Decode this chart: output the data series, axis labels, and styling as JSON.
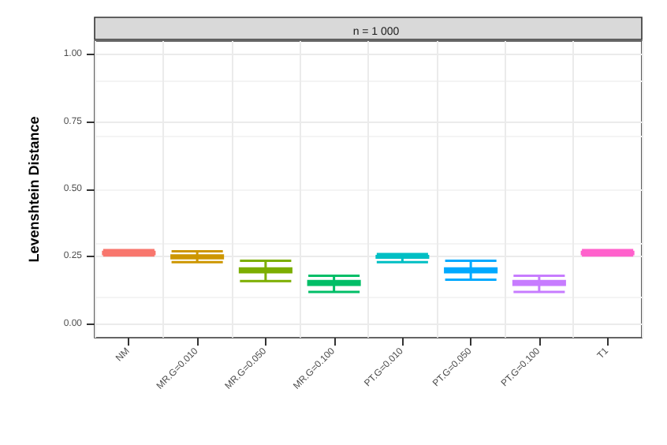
{
  "chart_data": {
    "type": "box",
    "title": "n = 1 000",
    "ylabel": "Levenshtein Distance",
    "categories": [
      "NM",
      "MR.G=0.010",
      "MR.G=0.050",
      "MR.G=0.100",
      "PT.G=0.010",
      "PT.G=0.050",
      "PT.G=0.100",
      "T1"
    ],
    "colors": [
      "#F8766D",
      "#CD9600",
      "#7CAE00",
      "#00BE67",
      "#00BFC4",
      "#00A9FF",
      "#C77CFF",
      "#FF61CC"
    ],
    "boxes": [
      {
        "low": 0.255,
        "q1": 0.26,
        "median": 0.264,
        "q3": 0.268,
        "high": 0.275
      },
      {
        "low": 0.23,
        "q1": 0.245,
        "median": 0.25,
        "q3": 0.255,
        "high": 0.27
      },
      {
        "low": 0.16,
        "q1": 0.193,
        "median": 0.2,
        "q3": 0.207,
        "high": 0.235
      },
      {
        "low": 0.12,
        "q1": 0.146,
        "median": 0.153,
        "q3": 0.16,
        "high": 0.18
      },
      {
        "low": 0.23,
        "q1": 0.247,
        "median": 0.25,
        "q3": 0.253,
        "high": 0.26
      },
      {
        "low": 0.165,
        "q1": 0.193,
        "median": 0.2,
        "q3": 0.207,
        "high": 0.235
      },
      {
        "low": 0.12,
        "q1": 0.146,
        "median": 0.153,
        "q3": 0.16,
        "high": 0.18
      },
      {
        "low": 0.255,
        "q1": 0.26,
        "median": 0.264,
        "q3": 0.268,
        "high": 0.275
      }
    ],
    "ylim": [
      -0.05,
      1.05
    ],
    "yticks": [
      {
        "value": 0,
        "label": "0.00"
      },
      {
        "value": 0.25,
        "label": "0.25"
      },
      {
        "value": 0.5,
        "label": "0.50"
      },
      {
        "value": 0.75,
        "label": "0.75"
      },
      {
        "value": 1,
        "label": "1.00"
      }
    ],
    "grid": true
  }
}
